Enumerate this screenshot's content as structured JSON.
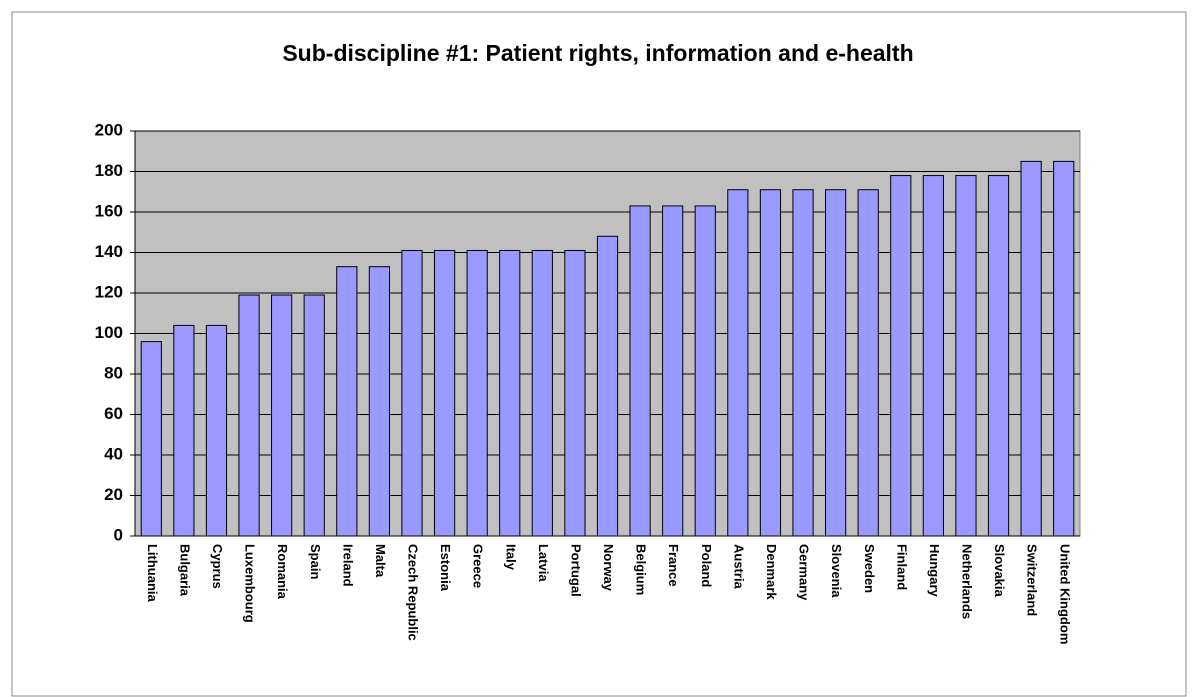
{
  "chart_data": {
    "type": "bar",
    "title": "Sub-discipline #1: Patient rights, information and e-health",
    "categories": [
      "Lithuania",
      "Bulgaria",
      "Cyprus",
      "Luxembourg",
      "Romania",
      "Spain",
      "Ireland",
      "Malta",
      "Czech Republic",
      "Estonia",
      "Greece",
      "Italy",
      "Latvia",
      "Portugal",
      "Norway",
      "Belgium",
      "France",
      "Poland",
      "Austria",
      "Denmark",
      "Germany",
      "Slovenia",
      "Sweden",
      "Finland",
      "Hungary",
      "Netherlands",
      "Slovakia",
      "Switzerland",
      "United Kingdom"
    ],
    "values": [
      96,
      104,
      104,
      119,
      119,
      119,
      133,
      133,
      141,
      141,
      141,
      141,
      141,
      141,
      148,
      163,
      163,
      163,
      171,
      171,
      171,
      171,
      171,
      178,
      178,
      178,
      178,
      185,
      185
    ],
    "color": "#9999ff",
    "ylim": [
      0,
      200
    ],
    "yticks": [
      0,
      20,
      40,
      60,
      80,
      100,
      120,
      140,
      160,
      180,
      200
    ],
    "grid": true
  }
}
